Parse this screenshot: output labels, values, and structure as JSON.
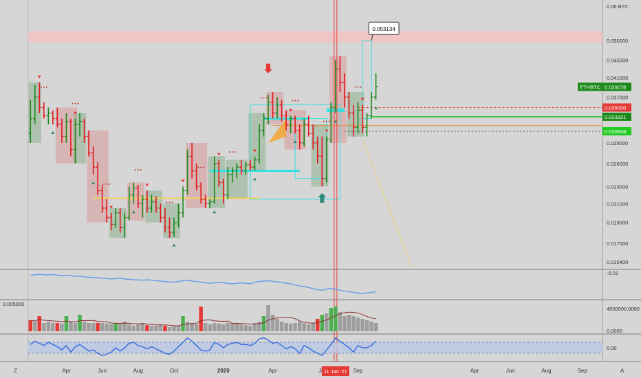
{
  "colors": {
    "background": "#d6d6d6",
    "up_candle": "#1b8a1b",
    "down_candle": "#e0191e",
    "neutral_candle": "#2a2a2a",
    "resistance_zone": "#f4c2c2",
    "cyan": "#33e0e0",
    "yellow_line": "#f2d35a",
    "rsi_line": "#6aa0e8",
    "osc_line": "#3d6fe0",
    "osc_fill": "#b9c7e6",
    "vol_up": "#4caf50",
    "vol_down": "#e53935",
    "vol_neutral": "#9e9e9e",
    "vol_ma": "#8b2c2c"
  },
  "chart_data": [
    {
      "type": "candlestick",
      "pane": "main",
      "symbol": "ETHBTC",
      "price_scale": "log",
      "ylim": [
        0.0148,
        0.062
      ],
      "y_ticks": [
        "0.06 BTC",
        "0.050000",
        "0.045000",
        "0.041000",
        "0.037000",
        "0.033000",
        "0.029000",
        "0.026000",
        "0.023000",
        "0.021000",
        "0.019000",
        "0.017000",
        "0.015400"
      ],
      "y_tick_values": [
        0.06,
        0.05,
        0.045,
        0.041,
        0.037,
        0.033,
        0.029,
        0.026,
        0.023,
        0.021,
        0.019,
        0.017,
        0.0154
      ],
      "grid": false,
      "ohlc": [
        [
          0.0305,
          0.0365,
          0.029,
          0.033
        ],
        [
          0.033,
          0.0395,
          0.032,
          0.037
        ],
        [
          0.037,
          0.04,
          0.034,
          0.035
        ],
        [
          0.035,
          0.036,
          0.033,
          0.0335
        ],
        [
          0.0335,
          0.035,
          0.032,
          0.034
        ],
        [
          0.034,
          0.0345,
          0.032,
          0.033
        ],
        [
          0.033,
          0.035,
          0.0315,
          0.032
        ],
        [
          0.032,
          0.033,
          0.029,
          0.03
        ],
        [
          0.03,
          0.034,
          0.029,
          0.0325
        ],
        [
          0.0325,
          0.033,
          0.027,
          0.028
        ],
        [
          0.028,
          0.033,
          0.026,
          0.032
        ],
        [
          0.032,
          0.034,
          0.03,
          0.0325
        ],
        [
          0.0325,
          0.033,
          0.029,
          0.03
        ],
        [
          0.03,
          0.031,
          0.027,
          0.0275
        ],
        [
          0.0275,
          0.0285,
          0.0245,
          0.0255
        ],
        [
          0.0255,
          0.0262,
          0.022,
          0.0225
        ],
        [
          0.0225,
          0.0232,
          0.02,
          0.0205
        ],
        [
          0.0205,
          0.0215,
          0.019,
          0.0195
        ],
        [
          0.0195,
          0.02,
          0.0182,
          0.0188
        ],
        [
          0.0188,
          0.0205,
          0.0185,
          0.02
        ],
        [
          0.02,
          0.0205,
          0.018,
          0.0185
        ],
        [
          0.0185,
          0.02,
          0.0175,
          0.0195
        ],
        [
          0.0195,
          0.023,
          0.0192,
          0.022
        ],
        [
          0.022,
          0.0235,
          0.021,
          0.0228
        ],
        [
          0.0228,
          0.0232,
          0.0205,
          0.021
        ],
        [
          0.021,
          0.022,
          0.0195,
          0.0215
        ],
        [
          0.0215,
          0.0225,
          0.02,
          0.0205
        ],
        [
          0.0205,
          0.022,
          0.02,
          0.0212
        ],
        [
          0.0212,
          0.0218,
          0.02,
          0.0205
        ],
        [
          0.0205,
          0.021,
          0.019,
          0.0195
        ],
        [
          0.0195,
          0.0205,
          0.018,
          0.0185
        ],
        [
          0.0185,
          0.0195,
          0.0175,
          0.018
        ],
        [
          0.018,
          0.0195,
          0.0176,
          0.019
        ],
        [
          0.019,
          0.021,
          0.0185,
          0.02
        ],
        [
          0.02,
          0.023,
          0.0195,
          0.0225
        ],
        [
          0.0225,
          0.028,
          0.022,
          0.027
        ],
        [
          0.027,
          0.029,
          0.024,
          0.025
        ],
        [
          0.025,
          0.026,
          0.0225,
          0.023
        ],
        [
          0.023,
          0.0235,
          0.021,
          0.0215
        ],
        [
          0.0215,
          0.022,
          0.0205,
          0.021
        ],
        [
          0.021,
          0.0215,
          0.0205,
          0.0212
        ],
        [
          0.0212,
          0.027,
          0.021,
          0.026
        ],
        [
          0.026,
          0.0265,
          0.023,
          0.0235
        ],
        [
          0.0235,
          0.024,
          0.021,
          0.022
        ],
        [
          0.022,
          0.0255,
          0.0215,
          0.0245
        ],
        [
          0.0245,
          0.0255,
          0.0235,
          0.025
        ],
        [
          0.025,
          0.026,
          0.024,
          0.0255
        ],
        [
          0.0255,
          0.0265,
          0.0245,
          0.025
        ],
        [
          0.025,
          0.0262,
          0.0245,
          0.0258
        ],
        [
          0.0258,
          0.0265,
          0.025,
          0.0255
        ],
        [
          0.0255,
          0.027,
          0.025,
          0.0265
        ],
        [
          0.0265,
          0.032,
          0.026,
          0.031
        ],
        [
          0.031,
          0.034,
          0.03,
          0.033
        ],
        [
          0.033,
          0.0375,
          0.032,
          0.036
        ],
        [
          0.036,
          0.038,
          0.033,
          0.034
        ],
        [
          0.034,
          0.037,
          0.033,
          0.0355
        ],
        [
          0.0355,
          0.0365,
          0.0325,
          0.0335
        ],
        [
          0.0335,
          0.0345,
          0.031,
          0.032
        ],
        [
          0.032,
          0.0335,
          0.0305,
          0.033
        ],
        [
          0.033,
          0.0335,
          0.0305,
          0.031
        ],
        [
          0.031,
          0.032,
          0.028,
          0.029
        ],
        [
          0.029,
          0.033,
          0.0285,
          0.032
        ],
        [
          0.032,
          0.0335,
          0.03,
          0.0305
        ],
        [
          0.0305,
          0.032,
          0.028,
          0.029
        ],
        [
          0.029,
          0.03,
          0.026,
          0.027
        ],
        [
          0.027,
          0.03,
          0.023,
          0.024
        ],
        [
          0.024,
          0.03,
          0.0235,
          0.0295
        ],
        [
          0.0295,
          0.036,
          0.029,
          0.035
        ],
        [
          0.035,
          0.045,
          0.034,
          0.043
        ],
        [
          0.043,
          0.046,
          0.038,
          0.04
        ],
        [
          0.04,
          0.042,
          0.035,
          0.037
        ],
        [
          0.037,
          0.038,
          0.033,
          0.034
        ],
        [
          0.034,
          0.0355,
          0.03,
          0.0315
        ],
        [
          0.0315,
          0.036,
          0.0305,
          0.0345
        ],
        [
          0.0345,
          0.0355,
          0.0305,
          0.0315
        ],
        [
          0.0315,
          0.034,
          0.03,
          0.0335
        ],
        [
          0.0335,
          0.038,
          0.033,
          0.037
        ],
        [
          0.037,
          0.042,
          0.0365,
          0.0391
        ]
      ],
      "last_price": "0.039078",
      "price_tags": [
        {
          "label": "ETHBTC",
          "value": "0.039078",
          "color": "#1b8a1b",
          "price": 0.039078
        },
        {
          "label": "",
          "value": "0.035000",
          "color": "#e53935",
          "price": 0.035
        },
        {
          "label": "",
          "value": "0.033321",
          "color": "#1b8a1b",
          "price": 0.033321
        },
        {
          "label": "",
          "value": "0.030848",
          "color": "#22cc22",
          "price": 0.030848
        }
      ],
      "annotations": [
        {
          "type": "callout",
          "text": "0.053134",
          "price": 0.053134
        },
        {
          "type": "zone",
          "from": 0.0495,
          "to": 0.0525,
          "label": ""
        },
        {
          "type": "marker",
          "kind": "sell-arrow"
        },
        {
          "type": "marker",
          "kind": "buy-arrow"
        }
      ]
    },
    {
      "type": "line",
      "pane": "rsi",
      "y_ticks": [
        "-0.01"
      ],
      "y_tick_values": [
        -0.01
      ],
      "values": [
        0.95,
        0.98,
        1.0,
        0.98,
        0.97,
        0.99,
        0.96,
        0.94,
        0.95,
        0.93,
        0.9,
        0.92,
        0.88,
        0.86,
        0.85,
        0.84,
        0.82,
        0.8,
        0.78,
        0.8,
        0.82,
        0.78,
        0.76,
        0.74,
        0.73,
        0.72,
        0.74,
        0.72,
        0.7,
        0.68,
        0.66,
        0.64,
        0.62,
        0.66,
        0.7,
        0.72,
        0.68,
        0.65,
        0.63,
        0.6,
        0.58,
        0.6,
        0.62,
        0.6,
        0.58,
        0.55,
        0.57,
        0.6,
        0.58,
        0.56,
        0.62,
        0.66,
        0.68,
        0.7,
        0.66,
        0.64,
        0.62,
        0.58,
        0.55,
        0.5,
        0.45,
        0.42,
        0.38,
        0.32,
        0.28,
        0.25,
        0.3,
        0.34,
        0.3,
        0.26,
        0.2,
        0.18,
        0.15,
        0.12,
        0.1,
        0.12,
        0.15,
        0.18
      ]
    },
    {
      "type": "bar",
      "pane": "volume",
      "y_ticks": [
        "4000000.0000",
        "0.0000"
      ],
      "y_tick_values": [
        4000000,
        0
      ],
      "left_label": "0.005000",
      "values": [
        0.4,
        0.35,
        0.55,
        0.3,
        0.35,
        0.3,
        0.3,
        0.28,
        0.55,
        0.35,
        0.3,
        0.6,
        0.35,
        0.3,
        0.3,
        0.3,
        0.3,
        0.28,
        0.25,
        0.3,
        0.3,
        0.35,
        0.25,
        0.2,
        0.25,
        0.3,
        0.22,
        0.2,
        0.2,
        0.25,
        0.2,
        0.15,
        0.18,
        0.2,
        0.55,
        0.35,
        0.3,
        0.25,
        0.9,
        0.3,
        0.25,
        0.3,
        0.28,
        0.25,
        0.3,
        0.3,
        0.3,
        0.25,
        0.22,
        0.2,
        0.3,
        0.35,
        0.55,
        0.95,
        0.6,
        0.45,
        0.35,
        0.3,
        0.28,
        0.3,
        0.35,
        0.3,
        0.25,
        0.3,
        0.45,
        0.6,
        0.65,
        0.85,
        0.9,
        0.7,
        0.55,
        0.6,
        0.55,
        0.5,
        0.45,
        0.4,
        0.35,
        0.3
      ],
      "bar_colors": [
        "down",
        "neutral",
        "down",
        "neutral",
        "neutral",
        "neutral",
        "down",
        "neutral",
        "up",
        "neutral",
        "neutral",
        "up",
        "neutral",
        "neutral",
        "neutral",
        "down",
        "neutral",
        "neutral",
        "neutral",
        "up",
        "neutral",
        "neutral",
        "neutral",
        "neutral",
        "neutral",
        "neutral",
        "down",
        "neutral",
        "neutral",
        "neutral",
        "down",
        "neutral",
        "neutral",
        "neutral",
        "up",
        "neutral",
        "neutral",
        "neutral",
        "down",
        "neutral",
        "neutral",
        "neutral",
        "neutral",
        "neutral",
        "neutral",
        "neutral",
        "neutral",
        "neutral",
        "neutral",
        "neutral",
        "neutral",
        "neutral",
        "up",
        "neutral",
        "neutral",
        "neutral",
        "neutral",
        "neutral",
        "neutral",
        "neutral",
        "neutral",
        "neutral",
        "neutral",
        "neutral",
        "down",
        "up",
        "neutral",
        "up",
        "up",
        "neutral",
        "neutral",
        "neutral",
        "neutral",
        "neutral",
        "neutral",
        "neutral",
        "neutral",
        "neutral"
      ]
    },
    {
      "type": "area",
      "pane": "oscillator",
      "y_ticks": [
        "0.00"
      ],
      "y_tick_values": [
        0
      ],
      "values": [
        0.3,
        0.6,
        0.4,
        0.2,
        0.5,
        0.3,
        0.1,
        -0.2,
        0.2,
        -0.4,
        0.1,
        0.3,
        0.0,
        -0.3,
        -0.2,
        -0.5,
        -0.7,
        -0.6,
        -0.4,
        0.0,
        -0.3,
        0.0,
        0.4,
        0.5,
        0.2,
        0.1,
        -0.1,
        0.1,
        -0.1,
        -0.3,
        -0.5,
        -0.6,
        -0.3,
        0.1,
        0.5,
        0.9,
        0.6,
        0.2,
        -0.2,
        -0.3,
        -0.2,
        0.5,
        0.3,
        0.0,
        0.3,
        0.4,
        0.5,
        0.3,
        0.3,
        0.2,
        0.4,
        0.8,
        0.9,
        0.7,
        0.4,
        0.5,
        0.2,
        -0.1,
        0.1,
        -0.1,
        -0.5,
        0.2,
        0.0,
        -0.3,
        -0.5,
        -0.7,
        -0.2,
        0.3,
        0.9,
        0.6,
        0.3,
        0.0,
        -0.4,
        0.2,
        0.0,
        0.0,
        0.2,
        0.6
      ]
    }
  ],
  "x_axis": {
    "labels": [
      "Apr",
      "Jun",
      "Aug",
      "Oct",
      "2020",
      "Apr",
      "Jul",
      "Sep",
      "Apr",
      "Jun",
      "Aug",
      "Sep"
    ],
    "label_bars": [
      8,
      16,
      24,
      32,
      43,
      54,
      65,
      73,
      99,
      107,
      115,
      123
    ],
    "highlight_label": "11 Jan '21",
    "highlight_bar": 88,
    "corner_left": "Z",
    "corner_right": "A"
  }
}
